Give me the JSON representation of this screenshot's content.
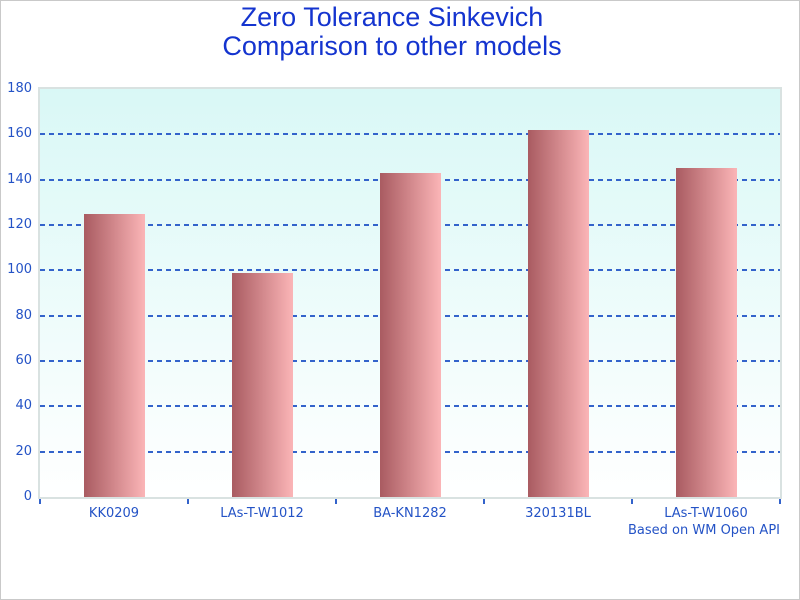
{
  "chart": {
    "title_line1": "Zero Tolerance Sinkevich",
    "title_line2": "Comparison to other models",
    "footer": "Based on WM Open API"
  },
  "chart_data": {
    "type": "bar",
    "title": "Zero Tolerance Sinkevich Comparison to other models",
    "categories": [
      "KK0209",
      "LAs-T-W1012",
      "BA-KN1282",
      "320131BL",
      "LAs-T-W1060"
    ],
    "values": [
      125,
      99,
      143,
      162,
      145
    ],
    "xlabel": "",
    "ylabel": "",
    "ylim": [
      0,
      180
    ],
    "ytick_step": 20,
    "grid": "dashed-horizontal",
    "legend": "none",
    "footer": "Based on WM Open API",
    "colors": {
      "title_text": "#1434cf",
      "axis_text": "#2453c6",
      "gridline": "#3363cb",
      "tick_mark": "#3363cb",
      "bar_gradient_left": "#a95b61",
      "bar_gradient_right": "#fbb5b7",
      "plot_bg_top": "#d9f8f6",
      "plot_bg_bottom": "#ffffff",
      "plot_border": "#d9e2e1"
    }
  }
}
